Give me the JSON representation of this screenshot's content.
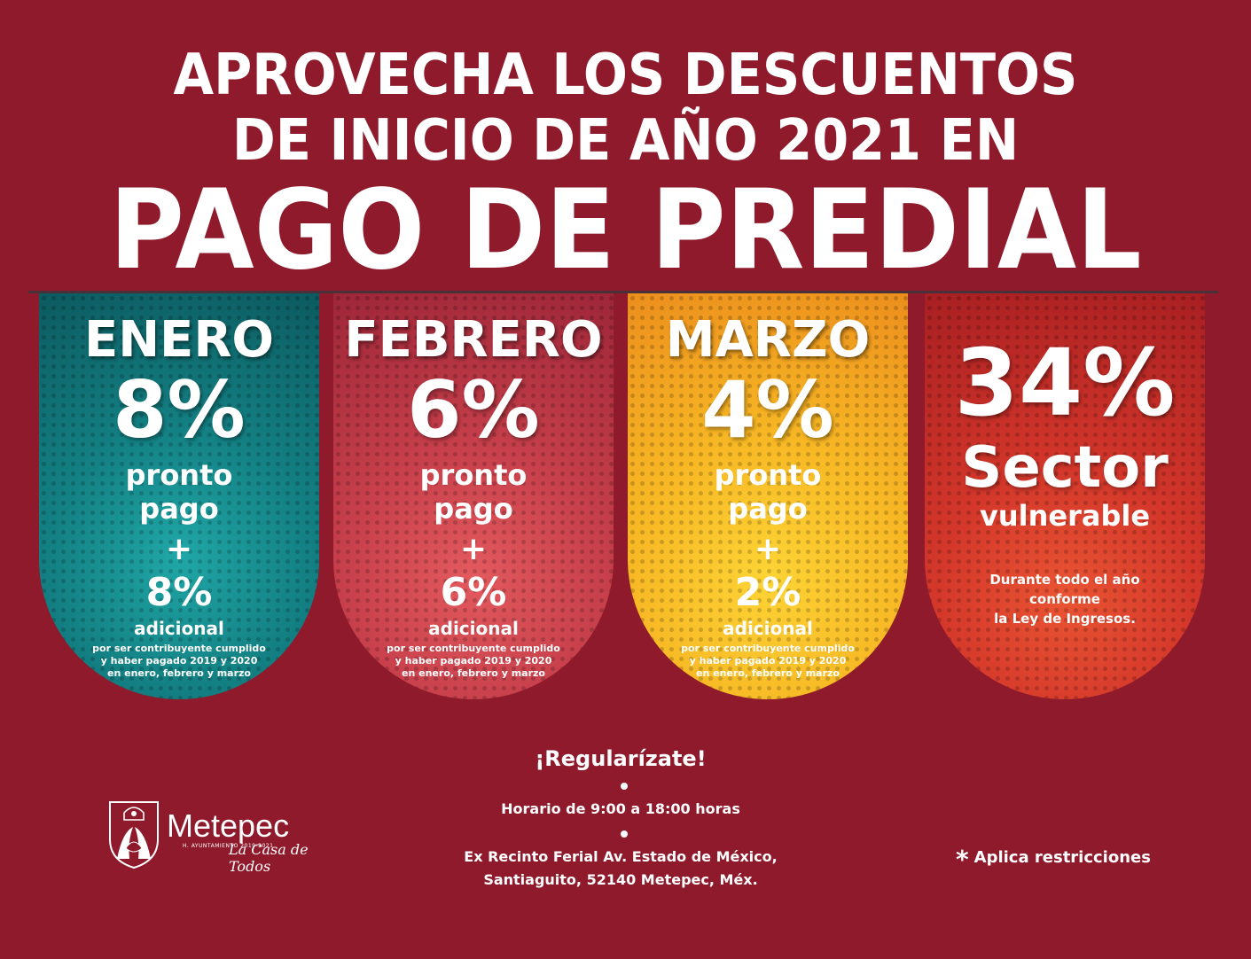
{
  "header": {
    "line1": "APROVECHA LOS DESCUENTOS",
    "line2": "DE INICIO DE AÑO 2021 EN",
    "line3": "PAGO DE PREDIAL"
  },
  "cards": [
    {
      "month": "ENERO",
      "percent": "8%",
      "pronto1": "pronto",
      "pronto2": "pago",
      "plus": "+",
      "extra": "8%",
      "adicional": "adicional",
      "note1": "por ser contribuyente cumplido",
      "note2": "y haber pagado 2019 y 2020",
      "note3": "en enero, febrero y marzo",
      "color": "#137f82"
    },
    {
      "month": "FEBRERO",
      "percent": "6%",
      "pronto1": "pronto",
      "pronto2": "pago",
      "plus": "+",
      "extra": "6%",
      "adicional": "adicional",
      "note1": "por ser contribuyente cumplido",
      "note2": "y haber pagado 2019 y 2020",
      "note3": "en enero, febrero y marzo",
      "color": "#c8404b"
    },
    {
      "month": "MARZO",
      "percent": "4%",
      "pronto1": "pronto",
      "pronto2": "pago",
      "plus": "+",
      "extra": "2%",
      "adicional": "adicional",
      "note1": "por ser contribuyente cumplido",
      "note2": "y haber pagado 2019 y 2020",
      "note3": "en enero, febrero y marzo",
      "color": "#f7b724"
    }
  ],
  "sector": {
    "percent": "34%",
    "word": "Sector",
    "sub": "vulnerable",
    "note1": "Durante todo el año",
    "note2": "conforme",
    "note3": "la Ley de Ingresos.",
    "color": "#d3362a"
  },
  "footer": {
    "regularizate": "¡Regularízate!",
    "horario": "Horario de 9:00 a 18:00 horas",
    "direccion1": "Ex Recinto Ferial  Av. Estado de México,",
    "direccion2": "Santiaguito, 52140 Metepec, Méx.",
    "aplica_star": "*",
    "aplica": "Aplica  restricciones"
  },
  "logo": {
    "name": "Metepec",
    "sub": "H. AYUNTAMIENTO   2019-2021",
    "slogan": "La Casa de Todos",
    "icon": "metepec-crest-icon"
  },
  "colors": {
    "background": "#8e1a2b"
  }
}
